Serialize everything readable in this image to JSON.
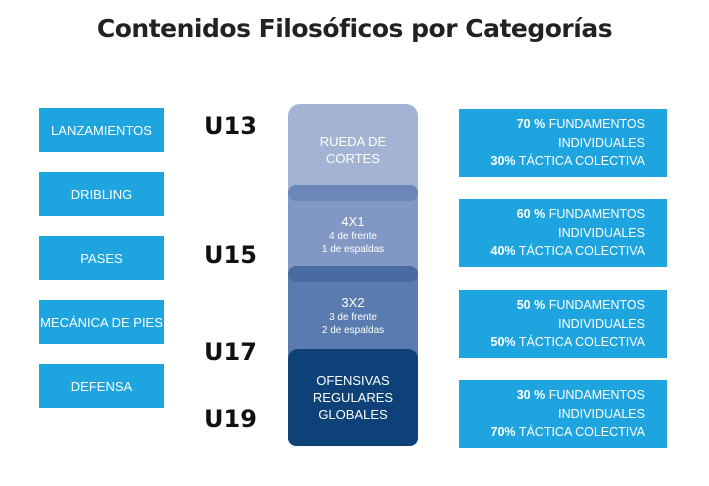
{
  "title": "Contenidos Filosóficos por Categorías",
  "fundamentals": [
    "LANZAMIENTOS",
    "DRIBLING",
    "PASES",
    "MECÁNICA DE PIES",
    "DEFENSA"
  ],
  "categories": [
    "U13",
    "U15",
    "U17",
    "U19"
  ],
  "stages": [
    {
      "title": "RUEDA DE CORTES",
      "title_line1": "RUEDA DE",
      "title_line2": "CORTES",
      "color": "#a3b3d3"
    },
    {
      "title": "4X1",
      "line1": "4 de frente",
      "line2": "1 de espaldas",
      "color": "#8198c6"
    },
    {
      "title": "3X2",
      "line1": "3 de frente",
      "line2": "2 de espaldas",
      "color": "#5a7bb0"
    },
    {
      "title_line1": "OFENSIVAS",
      "title_line2": "REGULARES",
      "title_line3": "GLOBALES",
      "color": "#0d4177"
    }
  ],
  "distributions": [
    {
      "fund_pct": "70 %",
      "fund_label": "FUNDAMENTOS",
      "fund_label2": "INDIVIDUALES",
      "tact_pct": "30%",
      "tact_label": "TÁCTICA COLECTIVA"
    },
    {
      "fund_pct": "60 %",
      "fund_label": "FUNDAMENTOS",
      "fund_label2": "INDIVIDUALES",
      "tact_pct": "40%",
      "tact_label": "TÁCTICA COLECTIVA"
    },
    {
      "fund_pct": "50 %",
      "fund_label": "FUNDAMENTOS",
      "fund_label2": "INDIVIDUALES",
      "tact_pct": "50%",
      "tact_label": "TÁCTICA COLECTIVA"
    },
    {
      "fund_pct": "30 %",
      "fund_label": "FUNDAMENTOS",
      "fund_label2": "INDIVIDUALES",
      "tact_pct": "70%",
      "tact_label": "TÁCTICA COLECTIVA"
    }
  ],
  "colors": {
    "accent": "#1ea5e0",
    "joint1": "#6b86b8",
    "joint2": "#4a6ba1"
  }
}
